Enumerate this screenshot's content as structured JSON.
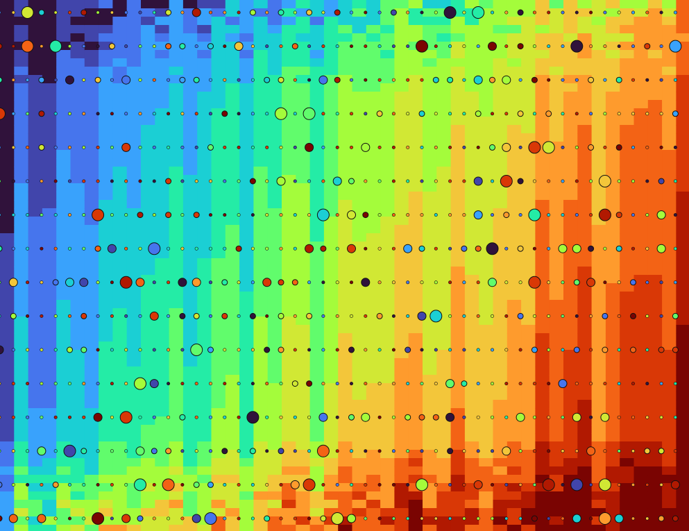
{
  "artwork": {
    "palette": [
      "#30123b",
      "#4145ab",
      "#4675ed",
      "#39a2fc",
      "#1bcfd4",
      "#24eca6",
      "#61fc6c",
      "#a4fc3b",
      "#d1e834",
      "#f3c63a",
      "#fe9b2d",
      "#f36315",
      "#d93806",
      "#b11901",
      "#7a0402"
    ],
    "background": "#7a0402"
  }
}
